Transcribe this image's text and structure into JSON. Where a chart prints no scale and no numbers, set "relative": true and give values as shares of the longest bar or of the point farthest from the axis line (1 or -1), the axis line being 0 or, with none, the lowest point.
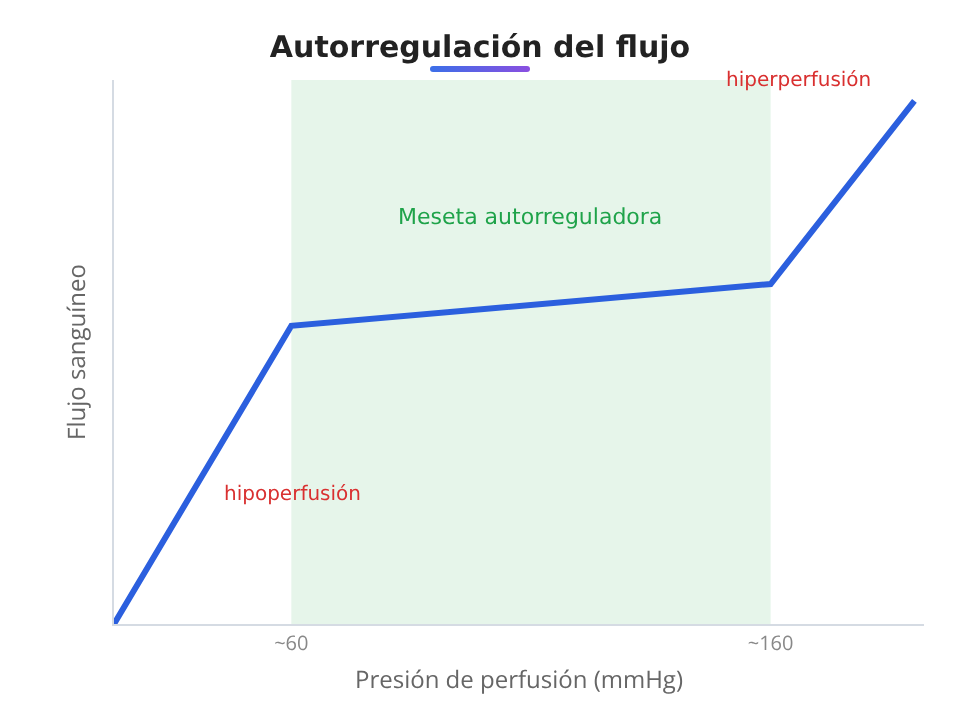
{
  "chart_data": {
    "type": "line",
    "title": "Autorregulación del flujo",
    "xlabel": "Presión de perfusión (mmHg)",
    "ylabel": "Flujo sanguíneo",
    "relative": true,
    "x": [
      23,
      60,
      160,
      190
    ],
    "series": [
      {
        "color": "#2b5fde",
        "values": [
          0,
          0.57,
          0.65,
          1
        ]
      }
    ],
    "xlim": [
      23,
      192
    ],
    "xticks": [
      {
        "value": 60,
        "label": "~60"
      },
      {
        "value": 160,
        "label": "~160"
      }
    ],
    "bands": [
      {
        "axis": "x",
        "from": 60,
        "to": 160,
        "label": "Meseta autorreguladora",
        "color": "#e6f5ea"
      }
    ],
    "annotations": [
      "hipoperfusión",
      "hiperperfusión"
    ],
    "grid": false,
    "marker": "none",
    "line_style": "solid"
  }
}
